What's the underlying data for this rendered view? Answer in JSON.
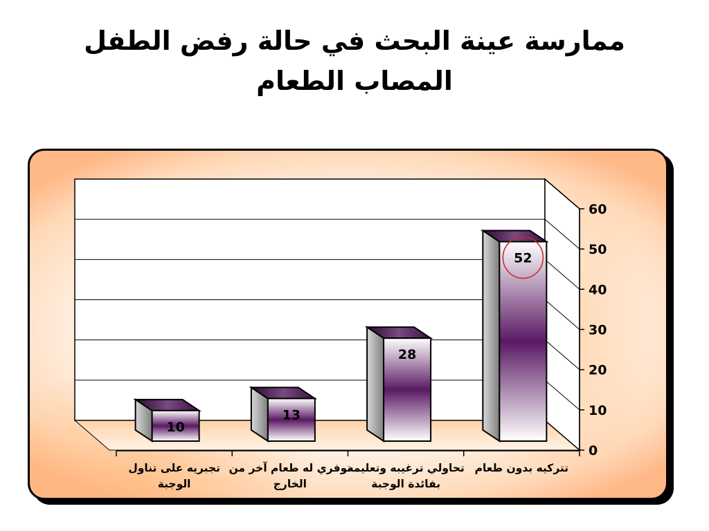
{
  "title_lines": [
    "ممارسة عينة البحث في حالة رفض الطفل",
    "المصاب الطعام"
  ],
  "chart_data": {
    "type": "bar",
    "title": "ممارسة عينة البحث في حالة رفض الطفل المصاب الطعام",
    "categories": [
      [
        "تتركيه بدون طعام"
      ],
      [
        "تحاولي ترغيبه وتعليمه",
        "بفائدة الوجبة"
      ],
      [
        "توفري له طعام آخر من",
        "الخارج"
      ],
      [
        "تجبريه على تناول",
        "الوجبة"
      ]
    ],
    "values": [
      52,
      28,
      13,
      10
    ],
    "data_labels": [
      "52",
      "28",
      "13",
      "10"
    ],
    "highlighted_label": "52",
    "ylim": [
      0,
      60
    ],
    "y_ticks": [
      "0",
      "10",
      "20",
      "30",
      "40",
      "50",
      "60"
    ],
    "y_axis_side": "right",
    "category_order": "right-to-left",
    "grid": true,
    "style": "3d-column",
    "bar_colors": {
      "light": "#ffffff",
      "dark": "#5a1a63",
      "side": "#bfbfbf"
    },
    "highlight_color": "#cc2222"
  }
}
